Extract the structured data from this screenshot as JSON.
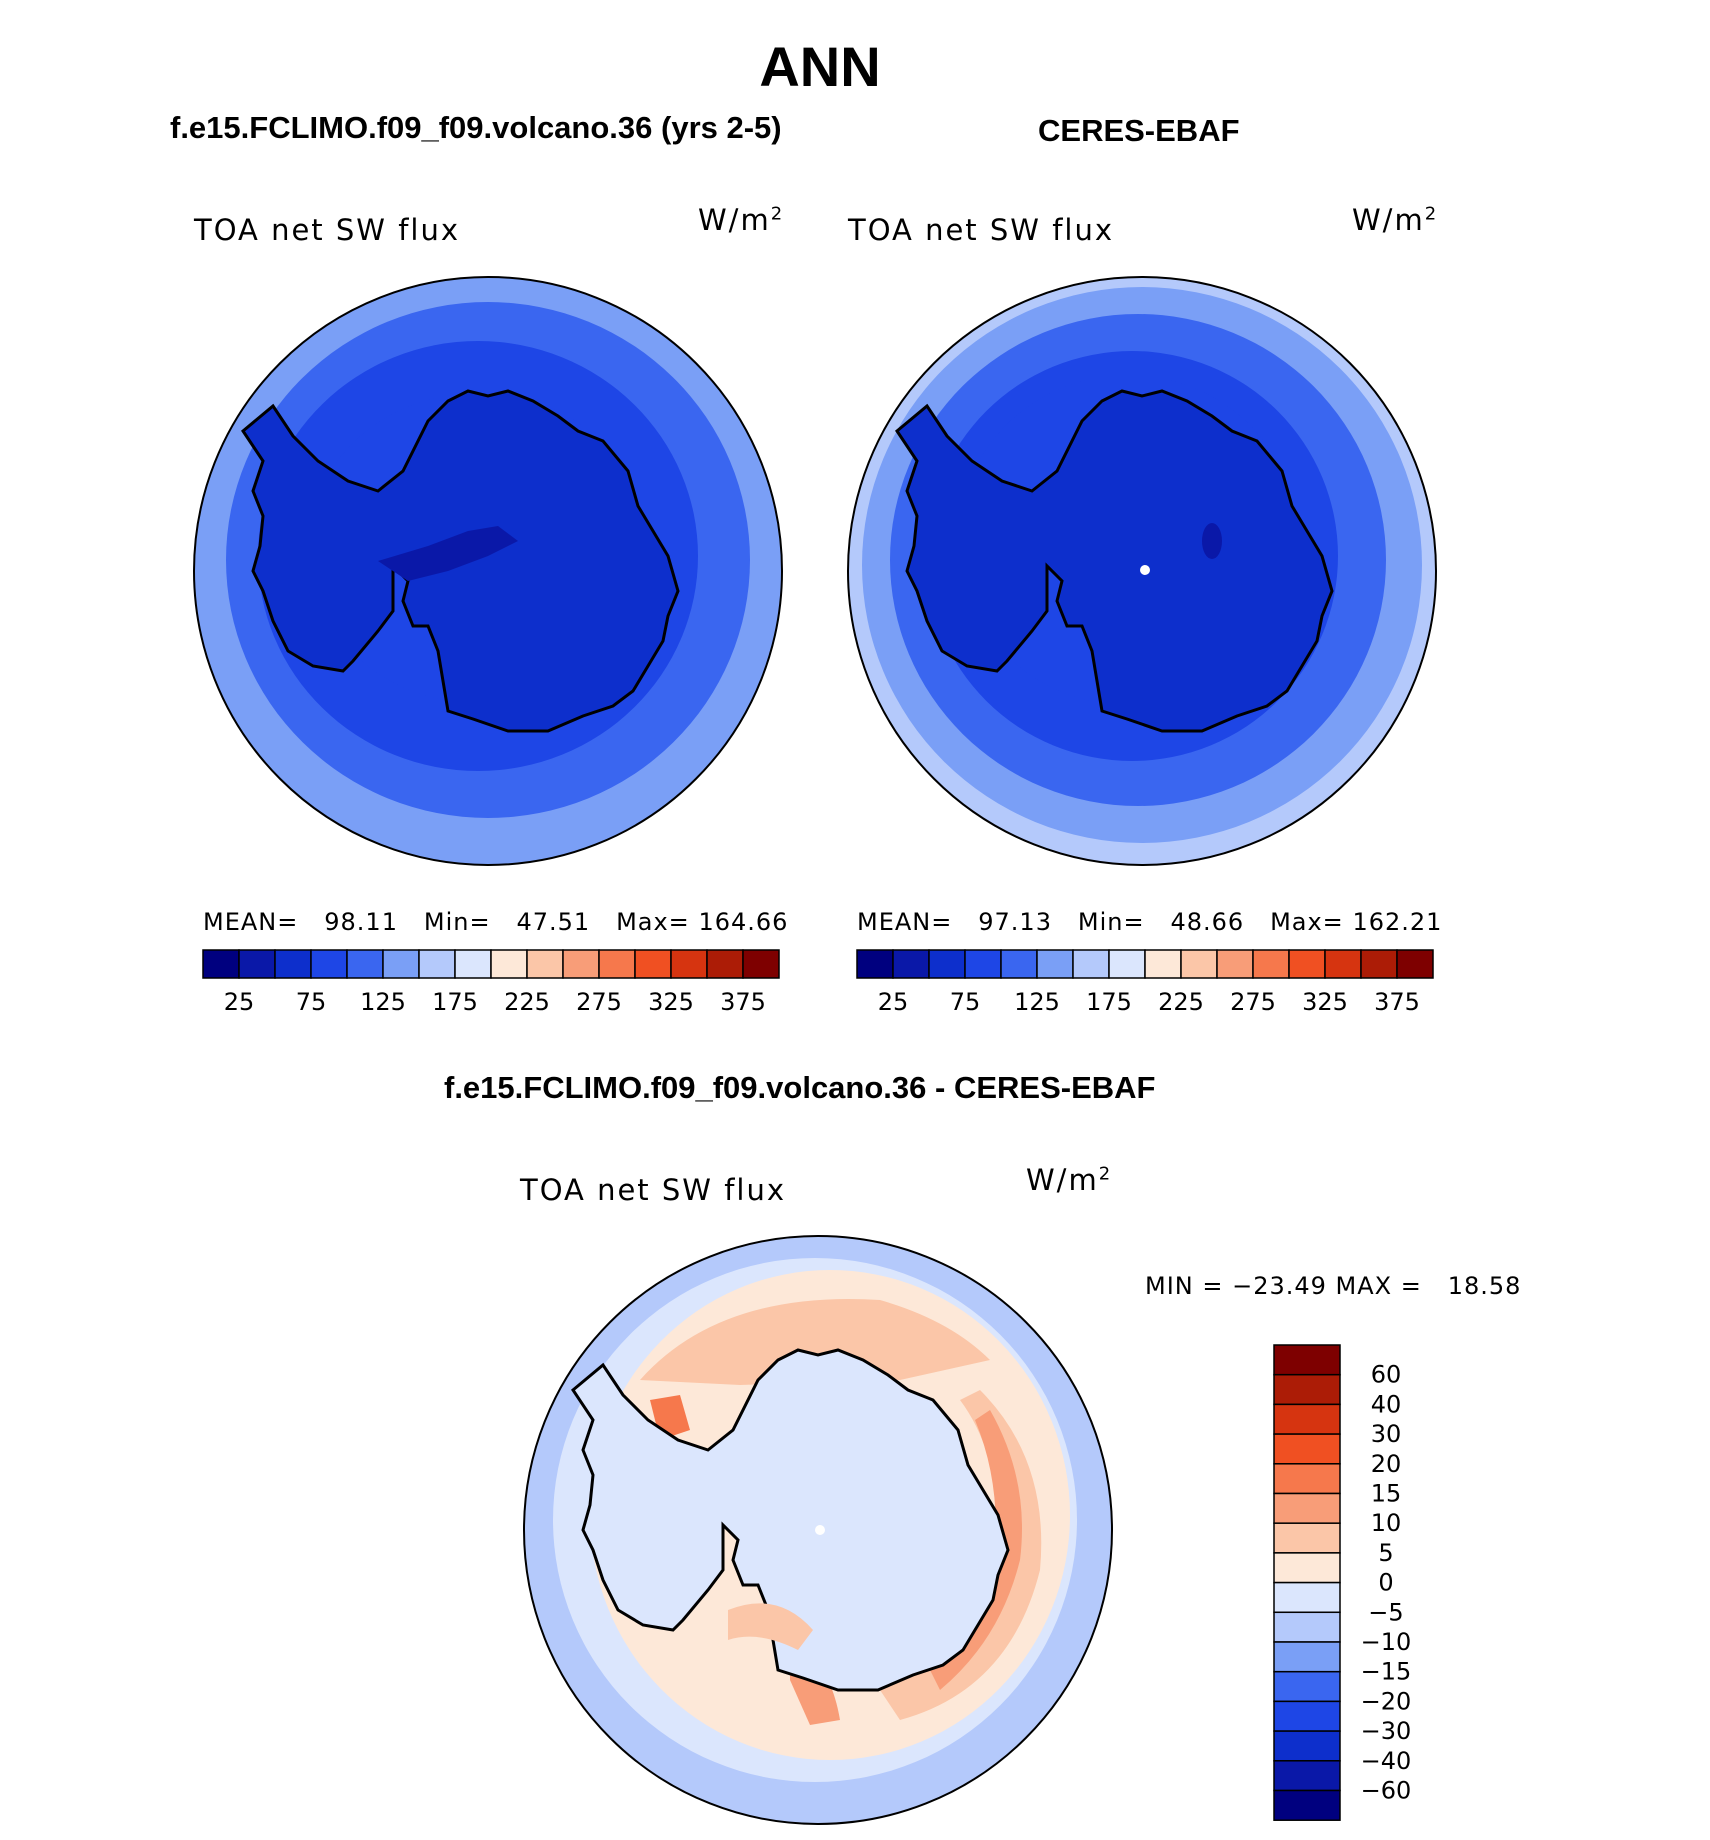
{
  "figure": {
    "season": "ANN",
    "diff_title": "f.e15.FCLIMO.f09_f09.volcano.36 - CERES-EBAF"
  },
  "panels": [
    {
      "id": "model",
      "case_title": "f.e15.FCLIMO.f09_f09.volcano.36 (yrs 2-5)",
      "variable": "TOA net SW flux",
      "units": "W/m",
      "units_exp": "2",
      "stats": {
        "mean_label": "MEAN=",
        "mean": "98.11",
        "min_label": "Min=",
        "min": "47.51",
        "max_label": "Max=",
        "max": "164.66"
      }
    },
    {
      "id": "obs",
      "case_title": "CERES-EBAF",
      "variable": "TOA net SW flux",
      "units": "W/m",
      "units_exp": "2",
      "stats": {
        "mean_label": "MEAN=",
        "mean": "97.13",
        "min_label": "Min=",
        "min": "48.66",
        "max_label": "Max=",
        "max": "162.21"
      }
    }
  ],
  "difference": {
    "variable": "TOA net SW flux",
    "units": "W/m",
    "units_exp": "2",
    "minmax_text": "MIN = −23.49 MAX =   18.58"
  },
  "colorbar_main": {
    "colors": [
      "#00007f",
      "#0a18a8",
      "#0d2fcc",
      "#1e46e6",
      "#3a66f0",
      "#7a9ff6",
      "#b4c9fb",
      "#dbe6fd",
      "#fde8d8",
      "#fbc6a8",
      "#f89d78",
      "#f6784c",
      "#f05022",
      "#d63410",
      "#ac1c06",
      "#7e0000"
    ],
    "tick_labels": [
      "25",
      "75",
      "125",
      "175",
      "225",
      "275",
      "325",
      "375"
    ]
  },
  "colorbar_diff": {
    "colors_top_to_bottom": [
      "#7e0000",
      "#ac1c06",
      "#d63410",
      "#f05022",
      "#f6784c",
      "#f89d78",
      "#fbc6a8",
      "#fde8d8",
      "#dbe6fd",
      "#b4c9fb",
      "#7a9ff6",
      "#3a66f0",
      "#1e46e6",
      "#0d2fcc",
      "#0a18a8",
      "#00007f"
    ],
    "tick_labels": [
      "60",
      "40",
      "30",
      "20",
      "15",
      "10",
      "5",
      "0",
      "−5",
      "−10",
      "−15",
      "−20",
      "−30",
      "−40",
      "−60"
    ]
  }
}
